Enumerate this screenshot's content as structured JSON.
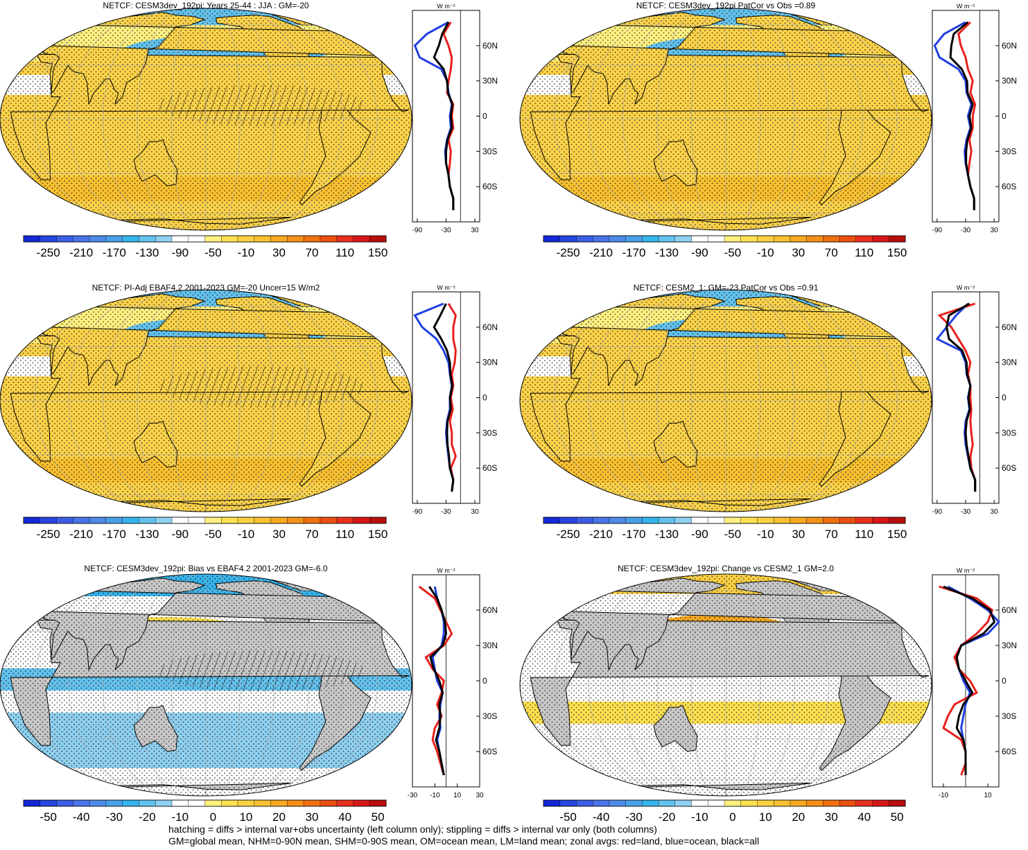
{
  "colors": {
    "ocean_series": "#1f3fe0",
    "land_series": "#e8201c",
    "all_series": "#000000",
    "land_mask": "#c8c8c8",
    "colorbar": [
      "#1328d8",
      "#2846e0",
      "#3c5ee6",
      "#4a74ea",
      "#4e8ae8",
      "#4a9fe8",
      "#36b4ec",
      "#62c2ee",
      "#8ed0f0",
      "#ffffff",
      "#ffffff",
      "#fff080",
      "#ffe050",
      "#fcd040",
      "#f8c030",
      "#f6a820",
      "#f49018",
      "#f07010",
      "#ec5010",
      "#e8301c",
      "#d81818",
      "#b80e0e"
    ]
  },
  "panels": [
    {
      "id": "p1",
      "title": "NETCF: CESM3dev_192pi: Years 25-44 : JJA : GM=-20",
      "colorbar_labels": [
        "-250",
        "-210",
        "-170",
        "-130",
        "-90",
        "-50",
        "-10",
        "30",
        "70",
        "110",
        "150"
      ],
      "zonal_xticks": [
        "-90",
        "-30",
        "30"
      ],
      "zonal_ylabels": [
        "60N",
        "30N",
        "0",
        "30S",
        "60S"
      ],
      "units": "W m⁻²",
      "style": "mean",
      "hatched": true
    },
    {
      "id": "p2",
      "title": "NETCF: CESM3dev_192pi PatCor vs Obs =0.89",
      "colorbar_labels": [
        "-250",
        "-210",
        "-170",
        "-130",
        "-90",
        "-50",
        "-10",
        "30",
        "70",
        "110",
        "150"
      ],
      "zonal_xticks": [
        "-90",
        "-30",
        "30"
      ],
      "zonal_ylabels": [
        "60N",
        "30N",
        "0",
        "30S",
        "60S"
      ],
      "units": "W m⁻²",
      "style": "mean",
      "hatched": false
    },
    {
      "id": "p3",
      "title": "NETCF: PI-Adj EBAF4.2 2001-2023 GM=-20 Uncer=15 W/m2",
      "colorbar_labels": [
        "-250",
        "-210",
        "-170",
        "-130",
        "-90",
        "-50",
        "-10",
        "30",
        "70",
        "110",
        "150"
      ],
      "zonal_xticks": [
        "-90",
        "-30",
        "30"
      ],
      "zonal_ylabels": [
        "60N",
        "30N",
        "0",
        "30S",
        "60S"
      ],
      "units": "W m⁻²",
      "style": "mean",
      "hatched": true
    },
    {
      "id": "p4",
      "title": "NETCF: CESM2_1: GM=-23 PatCor vs Obs =0.91",
      "colorbar_labels": [
        "-250",
        "-210",
        "-170",
        "-130",
        "-90",
        "-50",
        "-10",
        "30",
        "70",
        "110",
        "150"
      ],
      "zonal_xticks": [
        "-90",
        "-30",
        "30"
      ],
      "zonal_ylabels": [
        "60N",
        "30N",
        "0",
        "30S",
        "60S"
      ],
      "units": "W m⁻²",
      "style": "mean",
      "hatched": false
    },
    {
      "id": "p5",
      "title": "NETCF: CESM3dev_192pi: Bias vs EBAF4.2 2001-2023 GM=-6.0",
      "colorbar_labels": [
        "-50",
        "-40",
        "-30",
        "-20",
        "-10",
        "0",
        "10",
        "20",
        "30",
        "40",
        "50"
      ],
      "zonal_xticks": [
        "-30",
        "-10",
        "10",
        "30"
      ],
      "zonal_ylabels": [
        "60N",
        "30N",
        "0",
        "30S",
        "60S"
      ],
      "units": "W m⁻²",
      "style": "bias",
      "hatched": true
    },
    {
      "id": "p6",
      "title": "NETCF: CESM3dev_192pi: Change vs CESM2_1 GM=2.0",
      "colorbar_labels": [
        "-50",
        "-40",
        "-30",
        "-20",
        "-10",
        "0",
        "10",
        "20",
        "30",
        "40",
        "50"
      ],
      "zonal_xticks": [
        "-10",
        "10"
      ],
      "zonal_ylabels": [
        "60N",
        "30N",
        "0",
        "30S",
        "60S"
      ],
      "units": "W m⁻²",
      "style": "change",
      "hatched": false
    }
  ],
  "footnotes": [
    "hatching = diffs > internal var+obs uncertainty (left column only); stippling = diffs > internal var only (both columns)",
    "GM=global mean, NHM=0-90N mean, SHM=0-90S mean, OM=ocean mean, LM=land mean; zonal avgs: red=land, blue=ocean, black=all"
  ],
  "chart_data": [
    {
      "type": "line",
      "title": "NETCF: CESM3dev_192pi: Years 25-44 : JJA : GM=-20",
      "x": [
        -80,
        -70,
        -60,
        -50,
        -40,
        -30,
        -20,
        -10,
        0,
        10,
        20,
        30,
        40,
        50,
        60,
        70,
        80
      ],
      "series": [
        {
          "name": "red=land",
          "values": [
            -15,
            -15,
            -22,
            -25,
            -22,
            -20,
            -25,
            -15,
            -18,
            -15,
            -28,
            -25,
            -20,
            -18,
            -25,
            -35,
            -20
          ]
        },
        {
          "name": "blue=ocean",
          "values": [
            -15,
            -15,
            -22,
            -25,
            -30,
            -32,
            -28,
            -20,
            -22,
            -18,
            -25,
            -28,
            -40,
            -85,
            -95,
            -70,
            -25
          ]
        },
        {
          "name": "black=all",
          "values": [
            -15,
            -15,
            -22,
            -25,
            -30,
            -30,
            -27,
            -18,
            -20,
            -17,
            -26,
            -28,
            -35,
            -55,
            -45,
            -38,
            -25
          ]
        }
      ],
      "ylim": [
        -90,
        90
      ]
    },
    {
      "type": "line",
      "title": "NETCF: CESM3dev_192pi PatCor vs Obs =0.89",
      "x": [
        -80,
        -70,
        -60,
        -50,
        -40,
        -30,
        -20,
        -10,
        0,
        10,
        20,
        30,
        40,
        50,
        60,
        70,
        80
      ],
      "series": [
        {
          "name": "red=land",
          "values": [
            -12,
            -12,
            -20,
            -25,
            -22,
            -18,
            -22,
            -15,
            -15,
            -10,
            -20,
            -15,
            -25,
            -30,
            -40,
            -45,
            -20
          ]
        },
        {
          "name": "blue=ocean",
          "values": [
            -12,
            -12,
            -20,
            -25,
            -30,
            -32,
            -28,
            -20,
            -25,
            -18,
            -28,
            -30,
            -45,
            -85,
            -95,
            -75,
            -30
          ]
        },
        {
          "name": "black=all",
          "values": [
            -12,
            -12,
            -20,
            -25,
            -29,
            -29,
            -26,
            -18,
            -22,
            -15,
            -26,
            -27,
            -38,
            -62,
            -60,
            -55,
            -25
          ]
        }
      ],
      "ylim": [
        -90,
        90
      ]
    },
    {
      "type": "line",
      "title": "NETCF: PI-Adj EBAF4.2 2001-2023 GM=-20 Uncer=15 W/m2",
      "x": [
        -80,
        -70,
        -60,
        -50,
        -40,
        -30,
        -20,
        -10,
        0,
        10,
        20,
        30,
        40,
        50,
        60,
        70,
        80
      ],
      "series": [
        {
          "name": "red=land",
          "values": [
            -18,
            -15,
            -20,
            -10,
            -18,
            -18,
            -22,
            -16,
            -20,
            -15,
            -18,
            -12,
            -10,
            -15,
            -15,
            -10,
            -25
          ]
        },
        {
          "name": "blue=ocean",
          "values": [
            -18,
            -15,
            -22,
            -25,
            -28,
            -30,
            -28,
            -22,
            -22,
            -18,
            -22,
            -25,
            -35,
            -50,
            -80,
            -95,
            -35
          ]
        },
        {
          "name": "black=all",
          "values": [
            -18,
            -15,
            -22,
            -24,
            -27,
            -28,
            -27,
            -20,
            -22,
            -17,
            -21,
            -22,
            -28,
            -40,
            -55,
            -42,
            -30
          ]
        }
      ],
      "ylim": [
        -90,
        90
      ]
    },
    {
      "type": "line",
      "title": "NETCF: CESM2_1: GM=-23 PatCor vs Obs =0.91",
      "x": [
        -80,
        -70,
        -60,
        -50,
        -40,
        -30,
        -20,
        -10,
        0,
        10,
        20,
        30,
        40,
        50,
        60,
        70,
        80
      ],
      "series": [
        {
          "name": "red=land",
          "values": [
            -10,
            -10,
            -18,
            -20,
            -15,
            -18,
            -20,
            -18,
            -20,
            -20,
            -25,
            -20,
            -30,
            -45,
            -60,
            -85,
            -10
          ]
        },
        {
          "name": "blue=ocean",
          "values": [
            -10,
            -10,
            -20,
            -25,
            -30,
            -32,
            -30,
            -22,
            -25,
            -20,
            -28,
            -30,
            -40,
            -90,
            -70,
            -50,
            -25
          ]
        },
        {
          "name": "black=all",
          "values": [
            -10,
            -10,
            -20,
            -24,
            -28,
            -30,
            -28,
            -21,
            -24,
            -20,
            -27,
            -28,
            -37,
            -65,
            -70,
            -65,
            -22
          ]
        }
      ],
      "ylim": [
        -90,
        90
      ]
    },
    {
      "type": "line",
      "title": "NETCF: CESM3dev_192pi: Bias vs EBAF4.2 2001-2023 GM=-6.0",
      "x": [
        -80,
        -70,
        -60,
        -50,
        -40,
        -30,
        -20,
        -10,
        0,
        10,
        20,
        30,
        40,
        50,
        60,
        70,
        80
      ],
      "series": [
        {
          "name": "red=land",
          "values": [
            -2,
            -5,
            -8,
            -12,
            -10,
            -4,
            -8,
            -4,
            -2,
            -12,
            -18,
            -2,
            5,
            0,
            -5,
            -10,
            -24
          ]
        },
        {
          "name": "blue=ocean",
          "values": [
            -2,
            -4,
            -6,
            -8,
            -5,
            -6,
            -5,
            -3,
            -8,
            -10,
            -12,
            -4,
            -2,
            -2,
            -4,
            -8,
            -10
          ]
        },
        {
          "name": "black=all",
          "values": [
            -2,
            -4,
            -6,
            -9,
            -6,
            -5,
            -6,
            -3,
            -6,
            -11,
            -14,
            -3,
            0,
            -1,
            -4,
            -8,
            -15
          ]
        }
      ],
      "ylim": [
        -90,
        90
      ]
    },
    {
      "type": "line",
      "title": "NETCF: CESM3dev_192pi: Change vs CESM2_1 GM=2.0",
      "x": [
        -80,
        -70,
        -60,
        -50,
        -40,
        -30,
        -20,
        -10,
        0,
        10,
        20,
        30,
        40,
        50,
        60,
        70,
        80
      ],
      "series": [
        {
          "name": "red=land",
          "values": [
            -2,
            0,
            0,
            -2,
            -10,
            -8,
            -5,
            5,
            2,
            -3,
            -5,
            -2,
            5,
            10,
            12,
            5,
            -12
          ]
        },
        {
          "name": "blue=ocean",
          "values": [
            0,
            0,
            0,
            -1,
            -2,
            -1,
            0,
            2,
            -1,
            -3,
            -4,
            -2,
            10,
            15,
            10,
            2,
            -8
          ]
        },
        {
          "name": "black=all",
          "values": [
            0,
            0,
            0,
            -1,
            -4,
            -3,
            -1,
            3,
            0,
            -3,
            -4,
            -2,
            8,
            13,
            11,
            3,
            -10
          ]
        }
      ],
      "ylim": [
        -90,
        90
      ]
    }
  ]
}
